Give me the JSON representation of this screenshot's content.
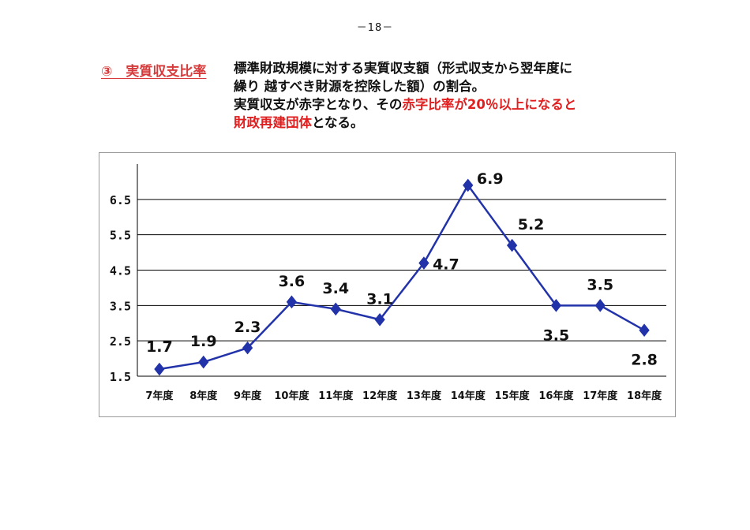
{
  "page": {
    "number": "－18－"
  },
  "heading": {
    "title": "③　実質収支比率"
  },
  "description": {
    "line1": "標準財政規模に対する実質収支額（形式収支から翌年度に",
    "line2": "繰り 越すべき財源を控除した額）の割合。",
    "line3_pre": "実質収支が赤字となり、その",
    "line3_red": "赤字比率が20％以上になると",
    "line4_red": "財政再建団体",
    "line4_post": "となる。"
  },
  "colors": {
    "accent_red": "#e02020",
    "series": "#2233aa",
    "grid": "#000000"
  },
  "chart_data": {
    "type": "line",
    "categories": [
      "7年度",
      "8年度",
      "9年度",
      "10年度",
      "11年度",
      "12年度",
      "13年度",
      "14年度",
      "15年度",
      "16年度",
      "17年度",
      "18年度"
    ],
    "series": [
      {
        "values": [
          1.7,
          1.9,
          2.3,
          3.6,
          3.4,
          3.1,
          4.7,
          6.9,
          5.2,
          3.5,
          3.5,
          2.8
        ],
        "labels": [
          "1.7",
          "1.9",
          "2.3",
          "3.6",
          "3.4",
          "3.1",
          "4.7",
          "6.9",
          "5.2",
          "3.5",
          "3.5",
          "2.8"
        ]
      }
    ],
    "yticks": [
      "1.5",
      "2.5",
      "3.5",
      "4.5",
      "5.5",
      "6.5"
    ],
    "ylim": [
      1.5,
      7.5
    ],
    "marker": "diamond",
    "grid": true
  }
}
